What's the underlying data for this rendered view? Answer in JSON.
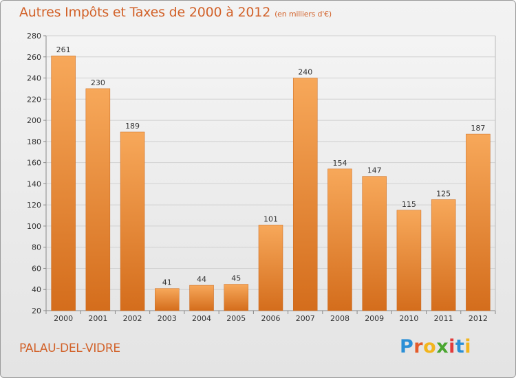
{
  "title": "Autres Impôts et Taxes de 2000 à 2012",
  "unit_label": "(en milliers d'€)",
  "location": "PALAU-DEL-VIDRE",
  "logo": {
    "text": "Proxiti",
    "letter_colors": [
      "#2a8fd6",
      "#e45b2a",
      "#f2b51d",
      "#4aa630",
      "#e23b3b",
      "#2a8fd6",
      "#f2b51d"
    ]
  },
  "colors": {
    "title": "#d2622a",
    "bar_top": "#f7a85a",
    "bar_bottom": "#d46d1c",
    "grid": "#d0d0d0",
    "axis": "#888888"
  },
  "chart_data": {
    "type": "bar",
    "title": "Autres Impôts et Taxes de 2000 à 2012",
    "ylabel": "",
    "xlabel": "",
    "categories": [
      "2000",
      "2001",
      "2002",
      "2003",
      "2004",
      "2005",
      "2006",
      "2007",
      "2008",
      "2009",
      "2010",
      "2011",
      "2012"
    ],
    "values": [
      261,
      230,
      189,
      41,
      44,
      45,
      101,
      240,
      154,
      147,
      115,
      125,
      187
    ],
    "ylim": [
      20,
      280
    ],
    "yticks": [
      20,
      40,
      60,
      80,
      100,
      120,
      140,
      160,
      180,
      200,
      220,
      240,
      260,
      280
    ],
    "grid": true,
    "legend": "none"
  }
}
